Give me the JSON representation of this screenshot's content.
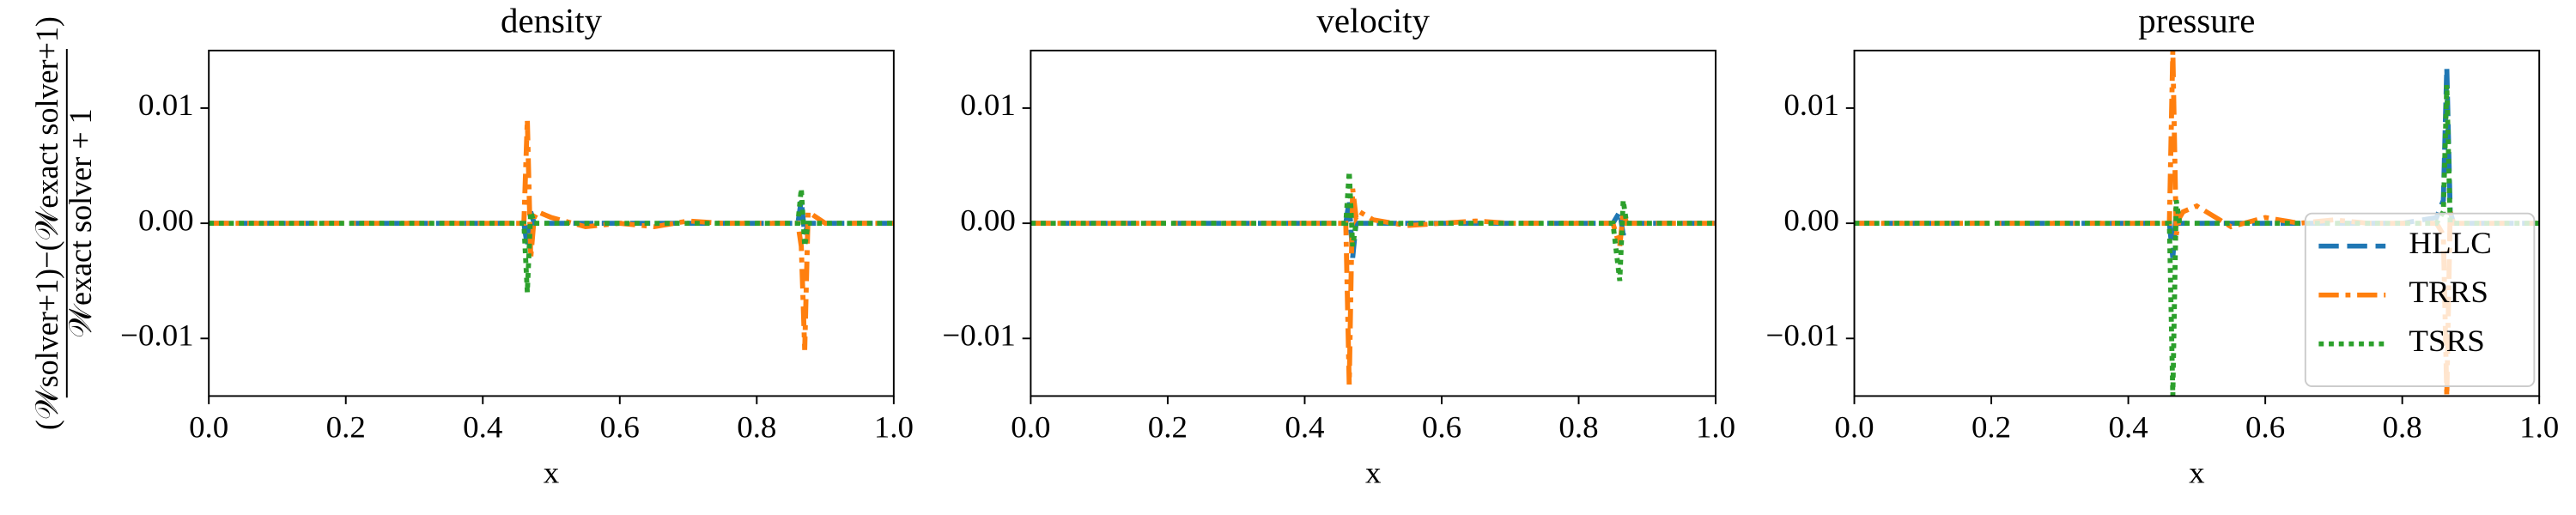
{
  "chart_data": [
    {
      "type": "line",
      "title": "density",
      "xlabel": "x",
      "ylabel_numerator": "(𝒲solver+1)−(𝒲exact solver+1)",
      "ylabel_denominator": "𝒲exact solver + 1",
      "x": [
        0,
        0.44,
        0.46,
        0.465,
        0.47,
        0.475,
        0.48,
        0.5,
        0.55,
        0.6,
        0.65,
        0.7,
        0.75,
        0.8,
        0.85,
        0.86,
        0.865,
        0.87,
        0.875,
        0.9,
        1.0
      ],
      "series": [
        {
          "color": "#1f77b4",
          "linestyle": "dashed",
          "values": [
            0,
            0,
            0,
            -0.002,
            0.001,
            0,
            0,
            0,
            0,
            0,
            0,
            0,
            0,
            0,
            0,
            0,
            0.002,
            -0.001,
            0,
            0,
            0
          ]
        },
        {
          "color": "#ff7f0e",
          "linestyle": "dashdot",
          "values": [
            0,
            0,
            0,
            0.009,
            -0.003,
            0.0005,
            0.001,
            0.0005,
            -0.0003,
            0,
            -0.0003,
            0.0002,
            0,
            0,
            0,
            0,
            -0.002,
            -0.011,
            0.001,
            0,
            0
          ]
        },
        {
          "color": "#2ca02c",
          "linestyle": "dotted",
          "values": [
            0,
            0,
            0,
            -0.006,
            0.001,
            0,
            0,
            0,
            0,
            0,
            0,
            0,
            0,
            0,
            0,
            0,
            0.003,
            -0.002,
            0,
            0,
            0
          ]
        }
      ],
      "xlim": [
        0,
        1
      ],
      "ylim": [
        -0.015,
        0.015
      ],
      "xticks": [
        {
          "value": 0,
          "label": "0.0"
        },
        {
          "value": 0.2,
          "label": "0.2"
        },
        {
          "value": 0.4,
          "label": "0.4"
        },
        {
          "value": 0.6,
          "label": "0.6"
        },
        {
          "value": 0.8,
          "label": "0.8"
        },
        {
          "value": 1,
          "label": "1.0"
        }
      ],
      "yticks": [
        {
          "value": -0.01,
          "label": "−0.01"
        },
        {
          "value": 0,
          "label": "0.00"
        },
        {
          "value": 0.01,
          "label": "0.01"
        }
      ]
    },
    {
      "type": "line",
      "title": "velocity",
      "xlabel": "x",
      "x": [
        0,
        0.44,
        0.46,
        0.465,
        0.47,
        0.475,
        0.48,
        0.5,
        0.55,
        0.6,
        0.65,
        0.7,
        0.75,
        0.8,
        0.85,
        0.86,
        0.865,
        0.87,
        0.875,
        0.9,
        1.0
      ],
      "series": [
        {
          "color": "#1f77b4",
          "linestyle": "dashed",
          "values": [
            0,
            0,
            0,
            0.002,
            -0.003,
            0,
            0,
            0,
            0,
            0,
            0,
            0,
            0,
            0,
            0,
            0.001,
            -0.001,
            0,
            0,
            0,
            0
          ]
        },
        {
          "color": "#ff7f0e",
          "linestyle": "dashdot",
          "values": [
            0,
            0,
            0,
            -0.014,
            0.003,
            0.0005,
            0.001,
            0.0003,
            -0.0002,
            0,
            0.0002,
            0,
            0,
            0,
            0,
            -0.002,
            0.001,
            0,
            0,
            0,
            0
          ]
        },
        {
          "color": "#2ca02c",
          "linestyle": "dotted",
          "values": [
            0,
            0,
            0,
            0.0045,
            -0.002,
            0,
            0,
            0,
            0,
            0,
            0,
            0,
            0,
            0,
            0,
            -0.005,
            0.002,
            0,
            0,
            0,
            0
          ]
        }
      ],
      "xlim": [
        0,
        1
      ],
      "ylim": [
        -0.015,
        0.015
      ],
      "xticks": [
        {
          "value": 0,
          "label": "0.0"
        },
        {
          "value": 0.2,
          "label": "0.2"
        },
        {
          "value": 0.4,
          "label": "0.4"
        },
        {
          "value": 0.6,
          "label": "0.6"
        },
        {
          "value": 0.8,
          "label": "0.8"
        },
        {
          "value": 1,
          "label": "1.0"
        }
      ],
      "yticks": [
        {
          "value": -0.01,
          "label": "−0.01"
        },
        {
          "value": 0,
          "label": "0.00"
        },
        {
          "value": 0.01,
          "label": "0.01"
        }
      ]
    },
    {
      "type": "line",
      "title": "pressure",
      "xlabel": "x",
      "legend": "lower right",
      "x": [
        0,
        0.44,
        0.46,
        0.465,
        0.47,
        0.475,
        0.48,
        0.5,
        0.55,
        0.6,
        0.65,
        0.7,
        0.75,
        0.8,
        0.85,
        0.86,
        0.865,
        0.87,
        0.875,
        0.9,
        1.0
      ],
      "series": [
        {
          "name": "HLLC",
          "color": "#1f77b4",
          "linestyle": "dashed",
          "values": [
            0,
            0,
            0,
            -0.003,
            0.001,
            0,
            0,
            0,
            0,
            0,
            0,
            0,
            0,
            0,
            0.0005,
            0.002,
            0.0135,
            0.001,
            0,
            0,
            0
          ]
        },
        {
          "name": "TRRS",
          "color": "#ff7f0e",
          "linestyle": "dashdot",
          "values": [
            0,
            0,
            0,
            0.015,
            -0.001,
            0.0005,
            0.001,
            0.0015,
            -0.0003,
            0.0005,
            0,
            0.0003,
            0,
            0,
            0,
            -0.001,
            -0.015,
            0.001,
            0,
            0,
            0
          ]
        },
        {
          "name": "TSRS",
          "color": "#2ca02c",
          "linestyle": "dotted",
          "values": [
            0,
            0,
            0,
            -0.015,
            0.002,
            0,
            0,
            0,
            0,
            0,
            0,
            0,
            0,
            0,
            0,
            0.001,
            0.012,
            0,
            0,
            0,
            0
          ]
        }
      ],
      "xlim": [
        0,
        1
      ],
      "ylim": [
        -0.015,
        0.015
      ],
      "xticks": [
        {
          "value": 0,
          "label": "0.0"
        },
        {
          "value": 0.2,
          "label": "0.2"
        },
        {
          "value": 0.4,
          "label": "0.4"
        },
        {
          "value": 0.6,
          "label": "0.6"
        },
        {
          "value": 0.8,
          "label": "0.8"
        },
        {
          "value": 1,
          "label": "1.0"
        }
      ],
      "yticks": [
        {
          "value": -0.01,
          "label": "−0.01"
        },
        {
          "value": 0,
          "label": "0.00"
        },
        {
          "value": 0.01,
          "label": "0.01"
        }
      ]
    }
  ]
}
